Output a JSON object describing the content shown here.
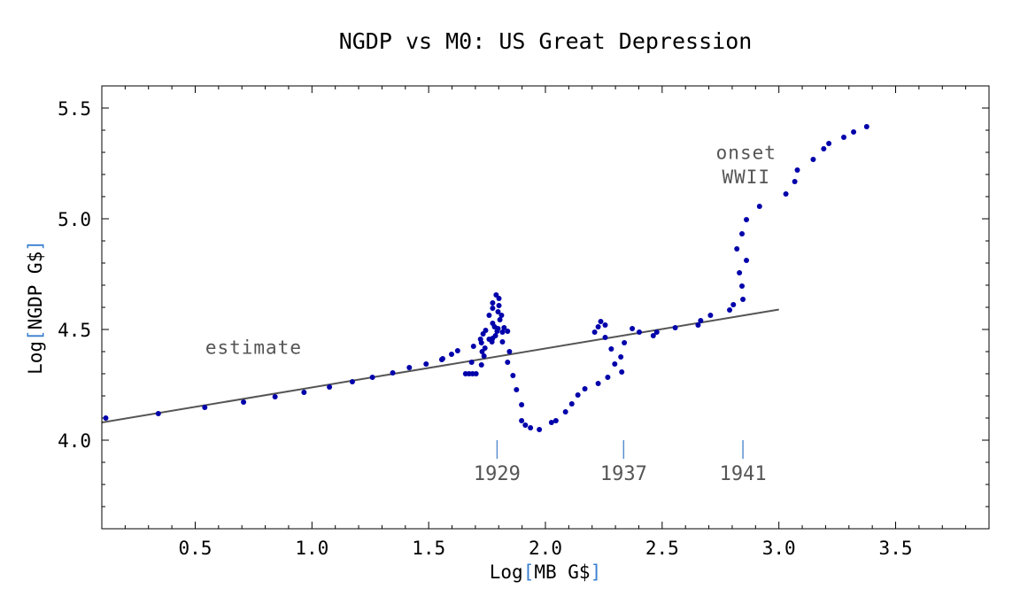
{
  "chart_data": {
    "type": "scatter",
    "title": "NGDP vs M0: US Great Depression",
    "xlabel": "Log[MB G$]",
    "ylabel": "Log[NGDP G$]",
    "xlim": [
      0.1,
      3.9
    ],
    "ylim": [
      3.6,
      5.6
    ],
    "xticks": [
      0.5,
      1.0,
      1.5,
      2.0,
      2.5,
      3.0,
      3.5
    ],
    "xtick_labels": [
      "0.5",
      "1.0",
      "1.5",
      "2.0",
      "2.5",
      "3.0",
      "3.5"
    ],
    "yticks": [
      4.0,
      4.5,
      5.0,
      5.5
    ],
    "ytick_labels": [
      "4.0",
      "4.5",
      "5.0",
      "5.5"
    ],
    "grid": false,
    "colors": {
      "points": "#0000aa",
      "line": "#555555",
      "markers": "#5b8fd0",
      "text": "#555555",
      "brackets": "#3a7fd0"
    },
    "points": [
      [
        0.117,
        4.1
      ],
      [
        0.342,
        4.12
      ],
      [
        0.541,
        4.148
      ],
      [
        0.707,
        4.172
      ],
      [
        0.842,
        4.196
      ],
      [
        0.966,
        4.216
      ],
      [
        1.075,
        4.24
      ],
      [
        1.173,
        4.264
      ],
      [
        1.259,
        4.284
      ],
      [
        1.346,
        4.304
      ],
      [
        1.417,
        4.328
      ],
      [
        1.489,
        4.344
      ],
      [
        1.556,
        4.364
      ],
      [
        1.56,
        4.368
      ],
      [
        1.598,
        4.388
      ],
      [
        1.624,
        4.404
      ],
      [
        1.658,
        4.3
      ],
      [
        1.673,
        4.3
      ],
      [
        1.688,
        4.3
      ],
      [
        1.703,
        4.3
      ],
      [
        1.684,
        4.352
      ],
      [
        1.692,
        4.424
      ],
      [
        1.726,
        4.34
      ],
      [
        1.737,
        4.38
      ],
      [
        1.729,
        4.4
      ],
      [
        1.741,
        4.416
      ],
      [
        1.722,
        4.456
      ],
      [
        1.726,
        4.44
      ],
      [
        1.733,
        4.48
      ],
      [
        1.744,
        4.496
      ],
      [
        1.759,
        4.456
      ],
      [
        1.771,
        4.444
      ],
      [
        1.774,
        4.46
      ],
      [
        1.759,
        4.564
      ],
      [
        1.774,
        4.596
      ],
      [
        1.774,
        4.62
      ],
      [
        1.789,
        4.656
      ],
      [
        1.801,
        4.64
      ],
      [
        1.801,
        4.608
      ],
      [
        1.797,
        4.58
      ],
      [
        1.812,
        4.564
      ],
      [
        1.805,
        4.544
      ],
      [
        1.774,
        4.528
      ],
      [
        1.782,
        4.512
      ],
      [
        1.793,
        4.492
      ],
      [
        1.786,
        4.472
      ],
      [
        1.797,
        4.504
      ],
      [
        1.816,
        4.488
      ],
      [
        1.823,
        4.508
      ],
      [
        1.838,
        4.492
      ],
      [
        1.816,
        4.444
      ],
      [
        1.846,
        4.4
      ],
      [
        1.838,
        4.352
      ],
      [
        1.861,
        4.292
      ],
      [
        1.876,
        4.228
      ],
      [
        1.898,
        4.16
      ],
      [
        1.898,
        4.088
      ],
      [
        1.914,
        4.068
      ],
      [
        1.936,
        4.056
      ],
      [
        1.974,
        4.048
      ],
      [
        2.026,
        4.08
      ],
      [
        2.045,
        4.088
      ],
      [
        2.086,
        4.128
      ],
      [
        2.113,
        4.164
      ],
      [
        2.139,
        4.204
      ],
      [
        2.169,
        4.232
      ],
      [
        2.226,
        4.256
      ],
      [
        2.267,
        4.284
      ],
      [
        2.211,
        4.488
      ],
      [
        2.226,
        4.512
      ],
      [
        2.237,
        4.536
      ],
      [
        2.256,
        4.52
      ],
      [
        2.256,
        4.464
      ],
      [
        2.282,
        4.412
      ],
      [
        2.297,
        4.344
      ],
      [
        2.323,
        4.376
      ],
      [
        2.327,
        4.308
      ],
      [
        2.338,
        4.44
      ],
      [
        2.372,
        4.504
      ],
      [
        2.402,
        4.488
      ],
      [
        2.462,
        4.472
      ],
      [
        2.477,
        4.488
      ],
      [
        2.556,
        4.508
      ],
      [
        2.654,
        4.52
      ],
      [
        2.665,
        4.54
      ],
      [
        2.707,
        4.564
      ],
      [
        2.789,
        4.588
      ],
      [
        2.805,
        4.612
      ],
      [
        2.846,
        4.636
      ],
      [
        2.842,
        4.696
      ],
      [
        2.831,
        4.756
      ],
      [
        2.861,
        4.812
      ],
      [
        2.82,
        4.864
      ],
      [
        2.842,
        4.932
      ],
      [
        2.861,
        4.996
      ],
      [
        2.917,
        5.056
      ],
      [
        3.03,
        5.112
      ],
      [
        3.068,
        5.168
      ],
      [
        3.079,
        5.22
      ],
      [
        3.147,
        5.268
      ],
      [
        3.192,
        5.316
      ],
      [
        3.214,
        5.34
      ],
      [
        3.278,
        5.368
      ],
      [
        3.32,
        5.392
      ],
      [
        3.376,
        5.416
      ]
    ],
    "fit_line": {
      "x": [
        0.1,
        3.0
      ],
      "y": [
        4.08,
        4.59
      ]
    },
    "annotations": [
      {
        "text": "estimate",
        "x": 0.75,
        "y": 4.39
      },
      {
        "text": "onset",
        "x": 2.86,
        "y": 5.27
      },
      {
        "text": "WWII",
        "x": 2.86,
        "y": 5.16
      }
    ],
    "year_markers": [
      {
        "label": "1929",
        "x": 1.793
      },
      {
        "label": "1937",
        "x": 2.335
      },
      {
        "label": "1941",
        "x": 2.846
      }
    ]
  }
}
